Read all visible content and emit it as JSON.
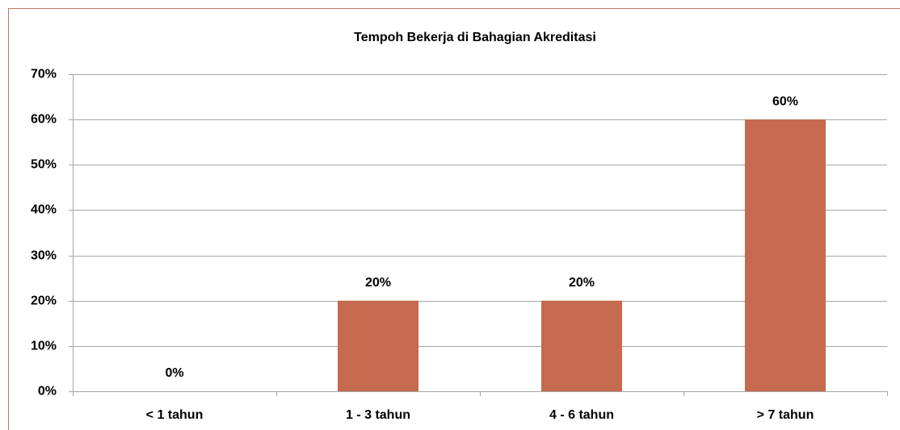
{
  "chart_data": {
    "type": "bar",
    "title": "Tempoh Bekerja di Bahagian Akreditasi",
    "categories": [
      "< 1 tahun",
      "1 - 3 tahun",
      "4 - 6 tahun",
      "> 7 tahun"
    ],
    "values": [
      0,
      20,
      20,
      60
    ],
    "value_labels": [
      "0%",
      "20%",
      "20%",
      "60%"
    ],
    "color": "#c5694f",
    "ylim": [
      0,
      70
    ],
    "yticks": [
      {
        "value": 0,
        "label": "0%"
      },
      {
        "value": 10,
        "label": "10%"
      },
      {
        "value": 20,
        "label": "20%"
      },
      {
        "value": 30,
        "label": "30%"
      },
      {
        "value": 40,
        "label": "40%"
      },
      {
        "value": 50,
        "label": "50%"
      },
      {
        "value": 60,
        "label": "60%"
      },
      {
        "value": 70,
        "label": "70%"
      }
    ],
    "grid": true
  }
}
